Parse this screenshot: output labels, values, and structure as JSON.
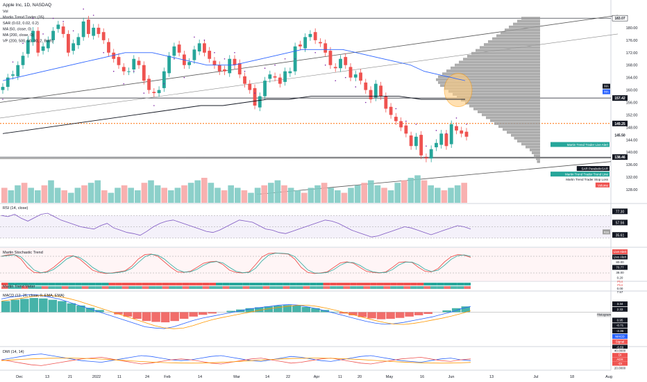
{
  "header": {
    "symbol_title": "Apple Inc, 1D, NASDAQ",
    "indicator_lines": [
      "Vol",
      "Martin Trend Trader (35)",
      "SAR (0.02, 0.02, 0.2)",
      "MA (50, close, 0)",
      "MA (200, close, 0)",
      "VP (200, 500, 50, 30, 2, Both)"
    ]
  },
  "price_axis": {
    "ticks": [
      "180.00",
      "176.00",
      "172.00",
      "168.00",
      "164.00",
      "160.00",
      "156.00",
      "152.00",
      "148.00",
      "144.00",
      "140.00",
      "136.00",
      "132.00",
      "128.00"
    ],
    "badges": [
      {
        "text": "183.07",
        "bg": "#ffffff",
        "fg": "#131722",
        "border": "#131722"
      },
      {
        "text": "157.42",
        "bg": "#131722",
        "fg": "#ffffff"
      },
      {
        "text": "149.25",
        "bg": "#131722",
        "fg": "#ffffff"
      },
      {
        "text": "145.50",
        "bg": "#ffffff",
        "fg": "#131722"
      },
      {
        "text": "138.46",
        "bg": "#131722",
        "fg": "#ffffff"
      }
    ],
    "ma_badges": [
      "MA",
      "MA"
    ]
  },
  "labels": {
    "martin_alert": "Martin Trend Trader Live Alert",
    "sar": "SAR ParabolicSAR",
    "trend_line": "Martin Trend Trader Trend Line",
    "stop_loss": "Martin Trend Trader Stop Loss",
    "volume": "Volume"
  },
  "rsi": {
    "title": "RSI (14, close)",
    "ticks": [
      "77.30",
      "57.56",
      "35.61"
    ],
    "tag": "RSI"
  },
  "stoch": {
    "title": "Martin Stochastic Trend",
    "ticks": [
      "Live Alert",
      "Live Alert",
      "80.00",
      "70.77",
      "38.00",
      "0.20"
    ]
  },
  "trend_bar": {
    "title": "Martin Trend Meter",
    "ticks": [
      "Plot",
      "Plot",
      "0.00",
      "7.57"
    ]
  },
  "macd": {
    "title": "MACD (12, 26, close, 9, EMA, EMA)",
    "ticks": [
      "3.34",
      "2.33",
      "Histogram",
      "0.95",
      "-0.71",
      "-2.36",
      "MACD",
      "Signal",
      "-6.69"
    ]
  },
  "dmi": {
    "title": "DMI (14, 14)",
    "ticks": [
      "40.0000",
      "DI",
      "ADX",
      "-DI",
      "20.0000"
    ]
  },
  "time_axis": [
    "Dec",
    "13",
    "21",
    "2022",
    "11",
    "24",
    "Feb",
    "14",
    "Mar",
    "14",
    "22",
    "Apr",
    "11",
    "20",
    "May",
    "16",
    "Jun",
    "13",
    "Jul",
    "18",
    "Aug"
  ],
  "colors": {
    "up": "#26a69a",
    "down": "#ef5350",
    "up_vol": "#80cbc4",
    "down_vol": "#f7a9a7",
    "ma50": "#2962ff",
    "ma200": "#131722",
    "sar": "#7b1fa2",
    "vp": "#9e9e9e",
    "orange_line": "#ff6d00",
    "highlight": "#ffcc80"
  },
  "chart_data": [
    {
      "type": "candlestick",
      "title": "Apple Inc, 1D, NASDAQ",
      "ylim": [
        126,
        184
      ],
      "series": [
        {
          "name": "Price (close)",
          "values": [
            161,
            164,
            165,
            168,
            171,
            176,
            179,
            172,
            174,
            176,
            179,
            181,
            178,
            172,
            175,
            177,
            182,
            178,
            180,
            178,
            176,
            172,
            170,
            168,
            166,
            166,
            170,
            168,
            163,
            160,
            159,
            160,
            166,
            171,
            174,
            172,
            168,
            169,
            173,
            175,
            172,
            170,
            168,
            166,
            166,
            170,
            168,
            165,
            162,
            160,
            155,
            158,
            163,
            165,
            164,
            162,
            166,
            166,
            174,
            174,
            177,
            178,
            176,
            175,
            172,
            168,
            167,
            170,
            168,
            164,
            165,
            163,
            160,
            157,
            162,
            158,
            154,
            152,
            150,
            148,
            146,
            142,
            145,
            139,
            138,
            141,
            143,
            146,
            142,
            149,
            147,
            146,
            145
          ]
        },
        {
          "name": "MA (50, close, 0)",
          "values": [
            163,
            164,
            165,
            166,
            167,
            168,
            169,
            170,
            171,
            172,
            172,
            172,
            171,
            170,
            169,
            168,
            168,
            168,
            169,
            170,
            171,
            172,
            173,
            173,
            173,
            173,
            172,
            171,
            170,
            169,
            168,
            166,
            165,
            164,
            163
          ]
        },
        {
          "name": "MA (200, close, 0)",
          "values": [
            146,
            147,
            148,
            149,
            150,
            151,
            152,
            153,
            154,
            155,
            155,
            156,
            157,
            157,
            158,
            158,
            158,
            158,
            158,
            157,
            157,
            157
          ]
        }
      ]
    },
    {
      "type": "bar",
      "title": "Vol",
      "values": [
        6,
        5,
        7,
        8,
        6,
        5,
        7,
        9,
        6,
        5,
        4,
        6,
        7,
        8,
        9,
        5,
        4,
        6,
        7,
        6,
        5,
        8,
        9,
        7,
        6,
        5,
        6,
        7,
        8,
        9,
        10,
        8,
        6,
        5,
        7,
        6,
        5,
        4,
        6,
        7,
        8,
        9,
        7,
        6,
        5,
        4,
        6,
        7,
        8,
        6,
        5,
        4,
        6,
        7,
        8,
        9,
        7,
        6,
        5,
        8,
        9,
        10,
        11,
        9,
        7,
        6,
        5,
        6,
        7,
        8
      ]
    },
    {
      "type": "line",
      "title": "RSI (14, close)",
      "ylim": [
        20,
        85
      ],
      "values": [
        70,
        68,
        72,
        65,
        60,
        66,
        72,
        74,
        68,
        62,
        58,
        54,
        50,
        48,
        46,
        52,
        56,
        48,
        44,
        40,
        38,
        35,
        42,
        50,
        56,
        60,
        62,
        58,
        54,
        50,
        46,
        42,
        40,
        44,
        50,
        56,
        62,
        60,
        58,
        52,
        46,
        44,
        40,
        38,
        42,
        46,
        50,
        54,
        58,
        62,
        60,
        56,
        50,
        44,
        40,
        36,
        32,
        34,
        38,
        42,
        46,
        50,
        48,
        44,
        40,
        36,
        40,
        44,
        48,
        52,
        50,
        46
      ]
    },
    {
      "type": "line",
      "title": "Martin Stochastic Trend",
      "ylim": [
        0,
        100
      ],
      "values": [
        80,
        85,
        86,
        70,
        40,
        22,
        20,
        25,
        40,
        60,
        80,
        82,
        70,
        50,
        30,
        22,
        18,
        20,
        24,
        28,
        45,
        70,
        86,
        88,
        80,
        60,
        40,
        24,
        22,
        26,
        40,
        55,
        60,
        62,
        50,
        30,
        22,
        20,
        24,
        50,
        78,
        90,
        92,
        90,
        88,
        70,
        40,
        22,
        18,
        20,
        24,
        40,
        56,
        60,
        55,
        40,
        26,
        22,
        20,
        24,
        40,
        58,
        60,
        58,
        40,
        26,
        24,
        36,
        60,
        78,
        86,
        84,
        76
      ]
    },
    {
      "type": "bar",
      "title": "MACD (12, 26, close, 9, EMA, EMA)",
      "ylim": [
        -7,
        4
      ],
      "values": [
        2.5,
        2.8,
        3.0,
        3.2,
        3.1,
        2.8,
        2.5,
        2,
        1.5,
        1,
        0.5,
        0,
        -0.5,
        -1,
        -1.5,
        -2,
        -2.2,
        -2.3,
        -2,
        -1.5,
        -1,
        -0.6,
        -0.3,
        0,
        0.3,
        0.6,
        0.9,
        1.1,
        1.3,
        1.5,
        1.6,
        1.5,
        1.2,
        0.9,
        0.5,
        0.1,
        -0.3,
        -0.7,
        -1.1,
        -1.4,
        -1.6,
        -1.5,
        -1.3,
        -1,
        -0.7,
        -0.4,
        0,
        0.4,
        0.9,
        1.3
      ]
    },
    {
      "type": "line",
      "title": "DMI (14, 14)",
      "ylim": [
        0,
        45
      ],
      "values": [
        20,
        24,
        28,
        32,
        34,
        30,
        26,
        22,
        18,
        16,
        14,
        18,
        22,
        26,
        30,
        28,
        24,
        20,
        18,
        20,
        24,
        28,
        30,
        26,
        22,
        18,
        16,
        20,
        24,
        28,
        26,
        22,
        18,
        16,
        20,
        24,
        28,
        30,
        26,
        22,
        18,
        16,
        14,
        18,
        22,
        24,
        20,
        18
      ]
    }
  ]
}
